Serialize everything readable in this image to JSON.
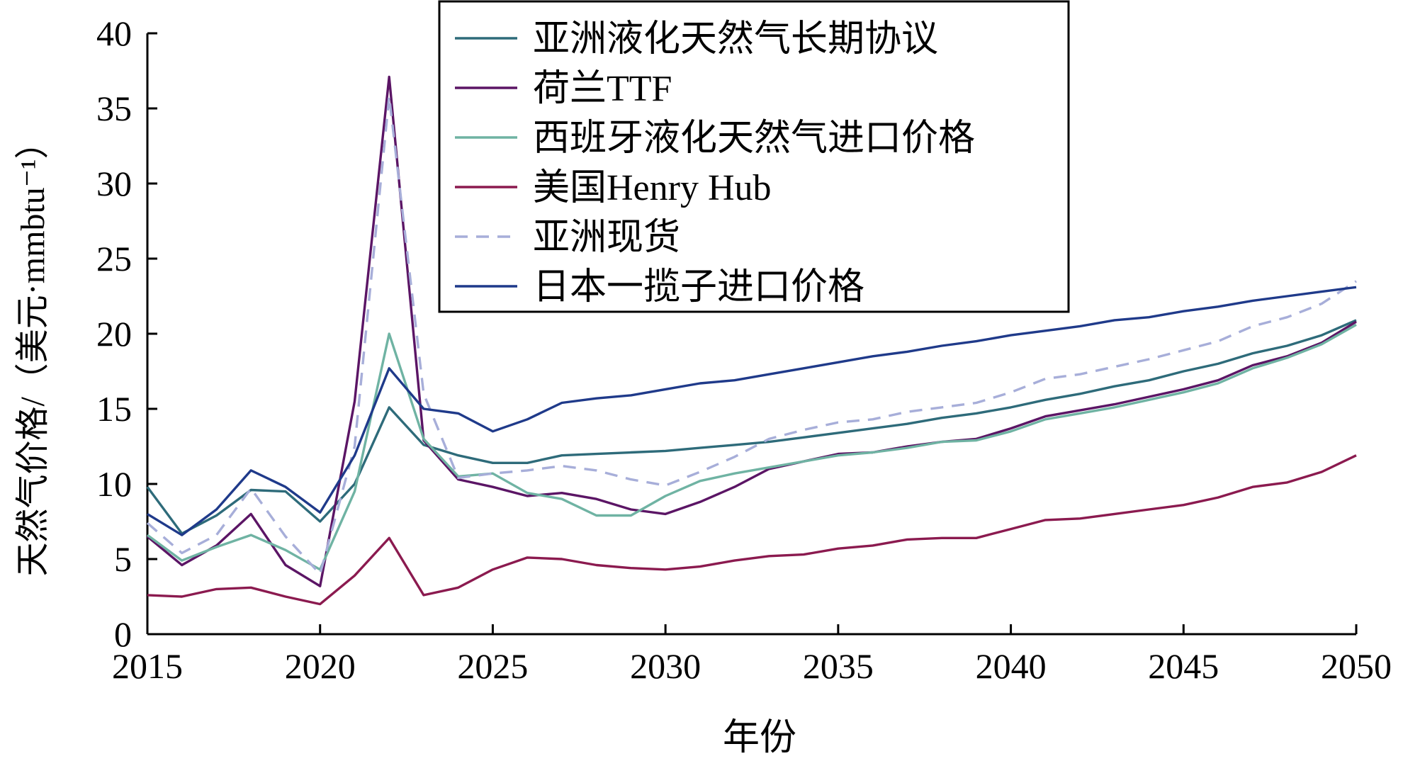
{
  "chart_data": {
    "type": "line",
    "xlabel": "年份",
    "ylabel": "天然气价格/（美元·mmbtu⁻¹）",
    "xlim": [
      2015,
      2050
    ],
    "ylim": [
      0,
      40
    ],
    "xticks": [
      2015,
      2020,
      2025,
      2030,
      2035,
      2040,
      2045,
      2050
    ],
    "yticks": [
      0,
      5,
      10,
      15,
      20,
      25,
      30,
      35,
      40
    ],
    "legend_position": "top-center",
    "x": [
      2015,
      2016,
      2017,
      2018,
      2019,
      2020,
      2021,
      2022,
      2023,
      2024,
      2025,
      2026,
      2027,
      2028,
      2029,
      2030,
      2031,
      2032,
      2033,
      2034,
      2035,
      2036,
      2037,
      2038,
      2039,
      2040,
      2041,
      2042,
      2043,
      2044,
      2045,
      2046,
      2047,
      2048,
      2049,
      2050
    ],
    "series": [
      {
        "name": "亚洲液化天然气长期协议",
        "color": "#2e6b7a",
        "dash": "solid",
        "values": [
          9.8,
          6.7,
          7.9,
          9.6,
          9.5,
          7.5,
          10.0,
          15.1,
          12.6,
          11.9,
          11.4,
          11.4,
          11.9,
          12.0,
          12.1,
          12.2,
          12.4,
          12.6,
          12.8,
          13.1,
          13.4,
          13.7,
          14.0,
          14.4,
          14.7,
          15.1,
          15.6,
          16.0,
          16.5,
          16.9,
          17.5,
          18.0,
          18.7,
          19.2,
          19.9,
          20.9
        ]
      },
      {
        "name": "荷兰TTF",
        "color": "#5b1565",
        "dash": "solid",
        "values": [
          6.5,
          4.6,
          5.9,
          8.0,
          4.6,
          3.2,
          15.5,
          37.1,
          12.9,
          10.3,
          9.8,
          9.2,
          9.4,
          9.0,
          8.3,
          8.0,
          8.8,
          9.8,
          11.0,
          11.5,
          12.0,
          12.1,
          12.5,
          12.8,
          13.0,
          13.7,
          14.5,
          14.9,
          15.3,
          15.8,
          16.3,
          16.9,
          17.9,
          18.5,
          19.4,
          20.8
        ]
      },
      {
        "name": "西班牙液化天然气进口价格",
        "color": "#6fb3a3",
        "dash": "solid",
        "values": [
          6.6,
          4.9,
          5.8,
          6.6,
          5.6,
          4.3,
          9.5,
          20.0,
          13.0,
          10.5,
          10.7,
          9.4,
          9.0,
          7.9,
          7.9,
          9.2,
          10.2,
          10.7,
          11.1,
          11.5,
          11.9,
          12.1,
          12.4,
          12.8,
          12.9,
          13.5,
          14.3,
          14.7,
          15.1,
          15.6,
          16.1,
          16.7,
          17.7,
          18.4,
          19.3,
          20.6
        ]
      },
      {
        "name": "美国Henry Hub",
        "color": "#8b1a4f",
        "dash": "solid",
        "values": [
          2.6,
          2.5,
          3.0,
          3.1,
          2.5,
          2.0,
          3.9,
          6.4,
          2.6,
          3.1,
          4.3,
          5.1,
          5.0,
          4.6,
          4.4,
          4.3,
          4.5,
          4.9,
          5.2,
          5.3,
          5.7,
          5.9,
          6.3,
          6.4,
          6.4,
          7.0,
          7.6,
          7.7,
          8.0,
          8.3,
          8.6,
          9.1,
          9.8,
          10.1,
          10.8,
          11.9
        ]
      },
      {
        "name": "亚洲现货",
        "color": "#a7aed9",
        "dash": "dashed",
        "values": [
          7.4,
          5.4,
          6.6,
          9.7,
          6.5,
          4.0,
          12.5,
          35.8,
          16.0,
          10.4,
          10.7,
          10.9,
          11.2,
          10.9,
          10.3,
          9.9,
          10.8,
          11.8,
          13.0,
          13.6,
          14.1,
          14.3,
          14.8,
          15.1,
          15.4,
          16.1,
          17.0,
          17.3,
          17.8,
          18.3,
          18.9,
          19.5,
          20.5,
          21.1,
          22.0,
          23.5
        ]
      },
      {
        "name": "日本一揽子进口价格",
        "color": "#1f3a8a",
        "dash": "solid",
        "values": [
          8.0,
          6.6,
          8.3,
          10.9,
          9.8,
          8.1,
          11.9,
          17.7,
          15.0,
          14.7,
          13.5,
          14.3,
          15.4,
          15.7,
          15.9,
          16.3,
          16.7,
          16.9,
          17.3,
          17.7,
          18.1,
          18.5,
          18.8,
          19.2,
          19.5,
          19.9,
          20.2,
          20.5,
          20.9,
          21.1,
          21.5,
          21.8,
          22.2,
          22.5,
          22.8,
          23.1
        ]
      }
    ]
  }
}
